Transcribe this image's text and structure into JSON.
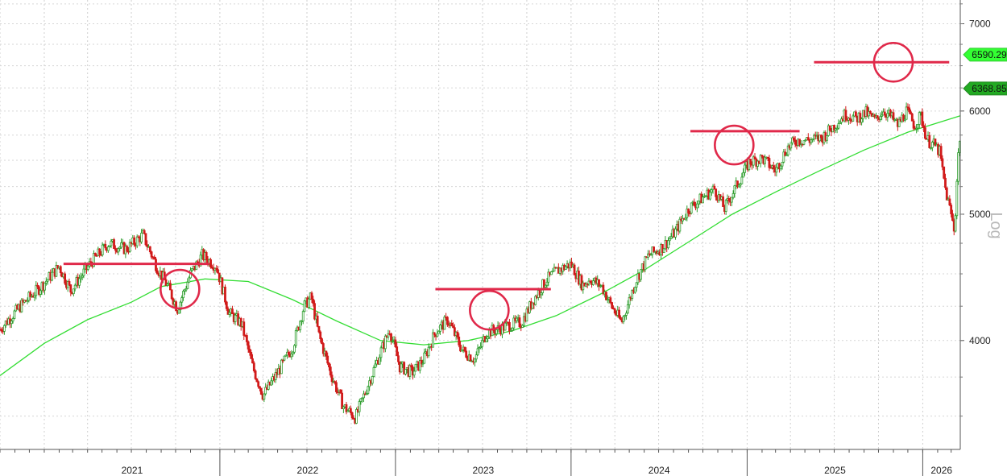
{
  "chart_data": {
    "type": "line",
    "title": "",
    "xlabel": "",
    "ylabel": "",
    "scale_label": "Log",
    "y_scale": "log",
    "ylim": [
      3300,
      7300
    ],
    "xlim": [
      "2020-10-01",
      "2026-03-20"
    ],
    "grid": true,
    "year_labels": [
      {
        "label": "2021",
        "date": "2021-01-01"
      },
      {
        "label": "2022",
        "date": "2022-01-01"
      },
      {
        "label": "2023",
        "date": "2023-01-01"
      },
      {
        "label": "2024",
        "date": "2024-01-01"
      },
      {
        "label": "2025",
        "date": "2025-01-01"
      },
      {
        "label": "2026",
        "date": "2026-01-01"
      }
    ],
    "y_ticks": [
      {
        "label": "4000",
        "value": 4000
      },
      {
        "label": "5000",
        "value": 5000
      },
      {
        "label": "6000",
        "value": 6000
      },
      {
        "label": "7000",
        "value": 7000
      }
    ],
    "price_tags": [
      {
        "label": "6590.29",
        "value": 6590.29,
        "color": "#33cc33",
        "fill": "#33ff33"
      },
      {
        "label": "6368.85",
        "value": 6368.85,
        "color": "#228822",
        "fill": "#22aa22"
      }
    ],
    "series": [
      {
        "kind": "candles",
        "up_color": "#2e9e2e",
        "down_color": "#d11a1a",
        "points": [
          {
            "x": "2020-10-01",
            "y": 4080
          },
          {
            "x": "2020-11-15",
            "y": 4260
          },
          {
            "x": "2020-12-25",
            "y": 4400
          },
          {
            "x": "2021-02-01",
            "y": 4560
          },
          {
            "x": "2021-02-25",
            "y": 4370
          },
          {
            "x": "2021-04-10",
            "y": 4600
          },
          {
            "x": "2021-05-15",
            "y": 4750
          },
          {
            "x": "2021-06-20",
            "y": 4700
          },
          {
            "x": "2021-07-25",
            "y": 4820
          },
          {
            "x": "2021-08-25",
            "y": 4540
          },
          {
            "x": "2021-09-15",
            "y": 4400
          },
          {
            "x": "2021-10-05",
            "y": 4230
          },
          {
            "x": "2021-11-01",
            "y": 4500
          },
          {
            "x": "2021-11-25",
            "y": 4650
          },
          {
            "x": "2021-12-25",
            "y": 4560
          },
          {
            "x": "2022-01-20",
            "y": 4200
          },
          {
            "x": "2022-02-15",
            "y": 4120
          },
          {
            "x": "2022-03-10",
            "y": 3820
          },
          {
            "x": "2022-04-01",
            "y": 3630
          },
          {
            "x": "2022-05-01",
            "y": 3780
          },
          {
            "x": "2022-06-01",
            "y": 3950
          },
          {
            "x": "2022-06-25",
            "y": 4250
          },
          {
            "x": "2022-07-10",
            "y": 4320
          },
          {
            "x": "2022-07-25",
            "y": 4050
          },
          {
            "x": "2022-08-20",
            "y": 3770
          },
          {
            "x": "2022-09-15",
            "y": 3560
          },
          {
            "x": "2022-10-10",
            "y": 3490
          },
          {
            "x": "2022-11-05",
            "y": 3700
          },
          {
            "x": "2022-12-01",
            "y": 3920
          },
          {
            "x": "2022-12-20",
            "y": 4080
          },
          {
            "x": "2023-01-10",
            "y": 3820
          },
          {
            "x": "2023-02-05",
            "y": 3780
          },
          {
            "x": "2023-03-01",
            "y": 3870
          },
          {
            "x": "2023-03-25",
            "y": 4060
          },
          {
            "x": "2023-04-20",
            "y": 4150
          },
          {
            "x": "2023-05-20",
            "y": 3930
          },
          {
            "x": "2023-06-15",
            "y": 3870
          },
          {
            "x": "2023-07-10",
            "y": 4060
          },
          {
            "x": "2023-08-01",
            "y": 4080
          },
          {
            "x": "2023-08-25",
            "y": 4110
          },
          {
            "x": "2023-09-20",
            "y": 4130
          },
          {
            "x": "2023-10-15",
            "y": 4300
          },
          {
            "x": "2023-11-10",
            "y": 4450
          },
          {
            "x": "2023-12-05",
            "y": 4530
          },
          {
            "x": "2024-01-01",
            "y": 4580
          },
          {
            "x": "2024-01-25",
            "y": 4410
          },
          {
            "x": "2024-02-10",
            "y": 4460
          },
          {
            "x": "2024-03-05",
            "y": 4400
          },
          {
            "x": "2024-03-25",
            "y": 4250
          },
          {
            "x": "2024-04-15",
            "y": 4130
          },
          {
            "x": "2024-05-15",
            "y": 4450
          },
          {
            "x": "2024-06-10",
            "y": 4650
          },
          {
            "x": "2024-07-10",
            "y": 4720
          },
          {
            "x": "2024-08-05",
            "y": 4850
          },
          {
            "x": "2024-09-01",
            "y": 5050
          },
          {
            "x": "2024-10-01",
            "y": 5150
          },
          {
            "x": "2024-10-25",
            "y": 5230
          },
          {
            "x": "2024-11-15",
            "y": 5050
          },
          {
            "x": "2024-12-10",
            "y": 5260
          },
          {
            "x": "2025-01-05",
            "y": 5480
          },
          {
            "x": "2025-02-01",
            "y": 5520
          },
          {
            "x": "2025-03-01",
            "y": 5400
          },
          {
            "x": "2025-03-25",
            "y": 5620
          },
          {
            "x": "2025-04-15",
            "y": 5700
          },
          {
            "x": "2025-05-10",
            "y": 5700
          },
          {
            "x": "2025-06-05",
            "y": 5720
          },
          {
            "x": "2025-07-01",
            "y": 5850
          },
          {
            "x": "2025-07-25",
            "y": 5970
          },
          {
            "x": "2025-08-15",
            "y": 5920
          },
          {
            "x": "2025-09-05",
            "y": 5980
          },
          {
            "x": "2025-09-25",
            "y": 5900
          },
          {
            "x": "2025-10-10",
            "y": 6010
          },
          {
            "x": "2025-10-25",
            "y": 5950
          },
          {
            "x": "2025-11-10",
            "y": 5850
          },
          {
            "x": "2025-11-28",
            "y": 6000
          },
          {
            "x": "2025-12-15",
            "y": 5850
          },
          {
            "x": "2025-12-28",
            "y": 5950
          },
          {
            "x": "2026-01-10",
            "y": 5700
          },
          {
            "x": "2026-01-25",
            "y": 5650
          },
          {
            "x": "2026-02-05",
            "y": 5580
          },
          {
            "x": "2026-02-18",
            "y": 5200
          },
          {
            "x": "2026-02-28",
            "y": 5020
          },
          {
            "x": "2026-03-08",
            "y": 4850
          },
          {
            "x": "2026-03-15",
            "y": 5500
          },
          {
            "x": "2026-03-20",
            "y": 5780
          }
        ]
      },
      {
        "kind": "moving_average",
        "color": "#33dd33",
        "points": [
          {
            "x": "2020-10-01",
            "y": 3760
          },
          {
            "x": "2021-01-01",
            "y": 3980
          },
          {
            "x": "2021-04-01",
            "y": 4150
          },
          {
            "x": "2021-07-01",
            "y": 4280
          },
          {
            "x": "2021-09-01",
            "y": 4400
          },
          {
            "x": "2021-12-01",
            "y": 4460
          },
          {
            "x": "2022-03-01",
            "y": 4440
          },
          {
            "x": "2022-06-01",
            "y": 4300
          },
          {
            "x": "2022-09-01",
            "y": 4140
          },
          {
            "x": "2022-12-01",
            "y": 4000
          },
          {
            "x": "2023-03-01",
            "y": 3970
          },
          {
            "x": "2023-06-01",
            "y": 4000
          },
          {
            "x": "2023-09-01",
            "y": 4070
          },
          {
            "x": "2023-12-01",
            "y": 4180
          },
          {
            "x": "2024-03-01",
            "y": 4340
          },
          {
            "x": "2024-06-01",
            "y": 4530
          },
          {
            "x": "2024-09-01",
            "y": 4760
          },
          {
            "x": "2024-12-01",
            "y": 5000
          },
          {
            "x": "2025-03-01",
            "y": 5200
          },
          {
            "x": "2025-06-01",
            "y": 5400
          },
          {
            "x": "2025-09-01",
            "y": 5600
          },
          {
            "x": "2025-12-01",
            "y": 5780
          },
          {
            "x": "2026-03-20",
            "y": 5950
          }
        ]
      }
    ],
    "annotations": {
      "support_lines": [
        {
          "x1": "2021-02-10",
          "x2": "2021-12-10",
          "y": 4580
        },
        {
          "x1": "2023-03-25",
          "x2": "2023-11-20",
          "y": 4380
        },
        {
          "x1": "2024-09-05",
          "x2": "2025-04-20",
          "y": 5790
        },
        {
          "x1": "2025-05-20",
          "x2": "2026-02-25",
          "y": 6540
        }
      ],
      "circles": [
        {
          "x": "2021-10-10",
          "y": 4380
        },
        {
          "x": "2023-07-15",
          "y": 4220
        },
        {
          "x": "2024-12-05",
          "y": 5650
        },
        {
          "x": "2025-11-01",
          "y": 6540
        }
      ],
      "color": "#e0294a"
    }
  }
}
